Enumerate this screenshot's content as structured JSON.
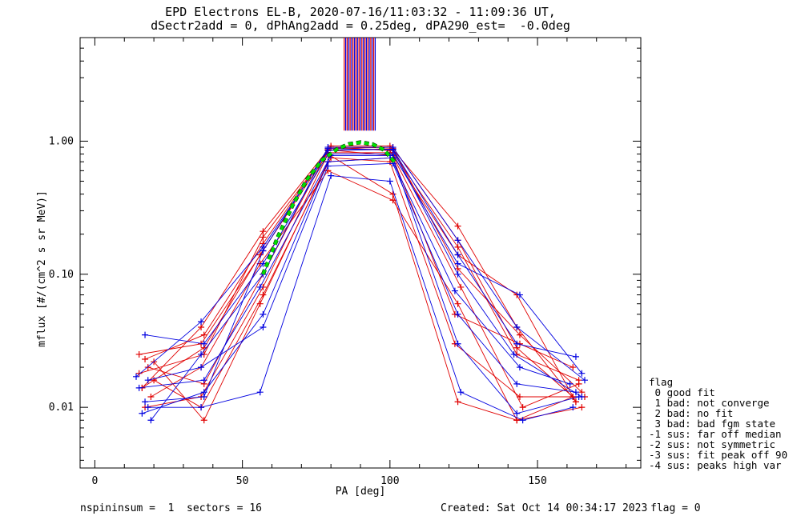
{
  "title_line1": "EPD Electrons EL-B, 2020-07-16/11:03:32 - 11:09:36 UT,",
  "title_line2": "dSectr2add = 0, dPhAng2add = 0.25deg, dPA290_est=  -0.0deg",
  "footer": {
    "left": "nspininsum =  1  sectors = 16",
    "created": "Created: Sat Oct 14 00:34:17 2023",
    "flag": "flag = 0"
  },
  "legend": {
    "title": "flag",
    "items": [
      " 0 good fit",
      " 1 bad: not converge",
      " 2 bad: no fit",
      " 3 bad: bad fgm state",
      "-1 sus: far off median",
      "-2 sus: not symmetric",
      "-3 sus: fit peak off 90",
      "-4 sus: peaks high var"
    ]
  },
  "colors": {
    "series_a": "#e00000",
    "series_b": "#0000e0",
    "fit": "#00dd00",
    "fit_outline": "#000000"
  },
  "chart_data": {
    "type": "line",
    "xlabel": "PA [deg]",
    "ylabel": "mflux [#/(cm^2 s sr MeV)]",
    "xlim": [
      -5,
      185
    ],
    "ylim": [
      0.0035,
      6
    ],
    "yscale": "log",
    "xticks": [
      0,
      50,
      100,
      150
    ],
    "yticks": [
      0.01,
      0.1,
      1.0
    ],
    "ytick_labels": [
      "0.01",
      "0.10",
      "1.00"
    ],
    "grid": false,
    "pa_bins": [
      15,
      18,
      20,
      36,
      37,
      57,
      79,
      101,
      123,
      143,
      144,
      162,
      165
    ],
    "series": [
      {
        "color": "red",
        "x": [
          15,
          36,
          57,
          79,
          101,
          123,
          143,
          162
        ],
        "y": [
          0.025,
          0.03,
          0.15,
          0.88,
          0.9,
          0.18,
          0.028,
          0.012
        ]
      },
      {
        "color": "red",
        "x": [
          18,
          37,
          57,
          79,
          101,
          123,
          144,
          165
        ],
        "y": [
          0.02,
          0.015,
          0.1,
          0.85,
          0.88,
          0.11,
          0.035,
          0.013
        ]
      },
      {
        "color": "red",
        "x": [
          16,
          36,
          57,
          80,
          100,
          123,
          143,
          163
        ],
        "y": [
          0.014,
          0.04,
          0.21,
          0.92,
          0.92,
          0.23,
          0.04,
          0.011
        ]
      },
      {
        "color": "red",
        "x": [
          20,
          37,
          56,
          79,
          101,
          122,
          144,
          162
        ],
        "y": [
          0.022,
          0.008,
          0.06,
          0.7,
          0.75,
          0.05,
          0.03,
          0.02
        ]
      },
      {
        "color": "red",
        "x": [
          17,
          36,
          57,
          79,
          101,
          123,
          143,
          165
        ],
        "y": [
          0.01,
          0.012,
          0.08,
          0.8,
          0.4,
          0.011,
          0.008,
          0.01
        ]
      },
      {
        "color": "red",
        "x": [
          15,
          37,
          57,
          80,
          100,
          124,
          145,
          164
        ],
        "y": [
          0.018,
          0.025,
          0.19,
          0.9,
          0.85,
          0.08,
          0.01,
          0.015
        ]
      },
      {
        "color": "red",
        "x": [
          19,
          36,
          56,
          79,
          101,
          123,
          143,
          162
        ],
        "y": [
          0.012,
          0.02,
          0.12,
          0.6,
          0.36,
          0.06,
          0.008,
          0.012
        ]
      },
      {
        "color": "red",
        "x": [
          17,
          37,
          57,
          79,
          101,
          123,
          143,
          163
        ],
        "y": [
          0.023,
          0.035,
          0.17,
          0.86,
          0.78,
          0.14,
          0.07,
          0.011
        ]
      },
      {
        "color": "red",
        "x": [
          20,
          36,
          57,
          80,
          100,
          122,
          144,
          166
        ],
        "y": [
          0.016,
          0.01,
          0.07,
          0.75,
          0.7,
          0.03,
          0.012,
          0.012
        ]
      },
      {
        "color": "red",
        "x": [
          16,
          37,
          56,
          79,
          101,
          123,
          143,
          164
        ],
        "y": [
          0.014,
          0.028,
          0.14,
          0.82,
          0.82,
          0.16,
          0.025,
          0.016
        ]
      },
      {
        "color": "blue",
        "x": [
          14,
          36,
          57,
          79,
          101,
          123,
          143,
          163
        ],
        "y": [
          0.017,
          0.044,
          0.16,
          0.85,
          0.87,
          0.14,
          0.03,
          0.024
        ]
      },
      {
        "color": "blue",
        "x": [
          17,
          37,
          57,
          79,
          101,
          123,
          144,
          165
        ],
        "y": [
          0.035,
          0.03,
          0.12,
          0.8,
          0.8,
          0.12,
          0.07,
          0.018
        ]
      },
      {
        "color": "blue",
        "x": [
          18,
          36,
          56,
          80,
          100,
          124,
          145,
          162
        ],
        "y": [
          0.01,
          0.01,
          0.013,
          0.55,
          0.5,
          0.013,
          0.008,
          0.01
        ]
      },
      {
        "color": "blue",
        "x": [
          16,
          37,
          57,
          79,
          101,
          123,
          143,
          164
        ],
        "y": [
          0.009,
          0.013,
          0.05,
          0.7,
          0.75,
          0.03,
          0.009,
          0.012
        ]
      },
      {
        "color": "blue",
        "x": [
          19,
          36,
          57,
          79,
          101,
          123,
          143,
          166
        ],
        "y": [
          0.008,
          0.025,
          0.1,
          0.9,
          0.9,
          0.18,
          0.04,
          0.016
        ]
      },
      {
        "color": "blue",
        "x": [
          15,
          37,
          56,
          80,
          100,
          122,
          144,
          161
        ],
        "y": [
          0.014,
          0.016,
          0.08,
          0.78,
          0.78,
          0.075,
          0.02,
          0.015
        ]
      },
      {
        "color": "blue",
        "x": [
          18,
          36,
          57,
          79,
          101,
          123,
          143,
          163
        ],
        "y": [
          0.016,
          0.02,
          0.04,
          0.65,
          0.68,
          0.05,
          0.015,
          0.013
        ]
      },
      {
        "color": "blue",
        "x": [
          17,
          37,
          57,
          79,
          101,
          123,
          142,
          165
        ],
        "y": [
          0.011,
          0.012,
          0.15,
          0.88,
          0.86,
          0.1,
          0.025,
          0.012
        ]
      }
    ],
    "fit_curve": {
      "x": [
        57,
        62,
        67,
        72,
        77,
        82,
        86,
        90,
        94,
        98,
        102
      ],
      "y": [
        0.1,
        0.19,
        0.33,
        0.52,
        0.72,
        0.87,
        0.95,
        0.98,
        0.95,
        0.86,
        0.68
      ]
    }
  }
}
